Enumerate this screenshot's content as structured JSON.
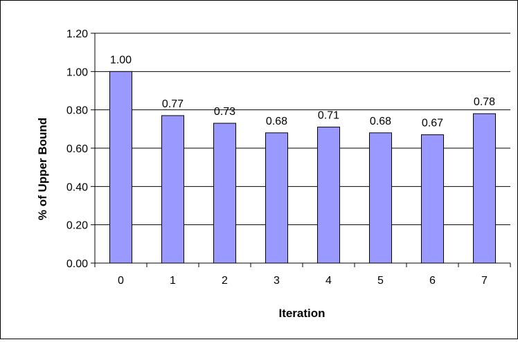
{
  "chart_data": {
    "type": "bar",
    "title": "",
    "xlabel": "Iteration",
    "ylabel": "% of Upper Bound",
    "categories": [
      "0",
      "1",
      "2",
      "3",
      "4",
      "5",
      "6",
      "7"
    ],
    "values": [
      1.0,
      0.77,
      0.73,
      0.68,
      0.71,
      0.68,
      0.67,
      0.78
    ],
    "data_labels": [
      "1.00",
      "0.77",
      "0.73",
      "0.68",
      "0.71",
      "0.68",
      "0.67",
      "0.78"
    ],
    "ylim": [
      0,
      1.2
    ],
    "yticks": [
      0,
      0.2,
      0.4,
      0.6,
      0.8,
      1.0,
      1.2
    ],
    "ytick_labels": [
      "0.00",
      "0.20",
      "0.40",
      "0.60",
      "0.80",
      "1.00",
      "1.20"
    ],
    "grid": "horizontal",
    "legend": "none",
    "colors": {
      "bar_fill": "#9999ff",
      "bar_stroke": "#000000",
      "grid": "#000000",
      "axis": "#000000"
    }
  }
}
